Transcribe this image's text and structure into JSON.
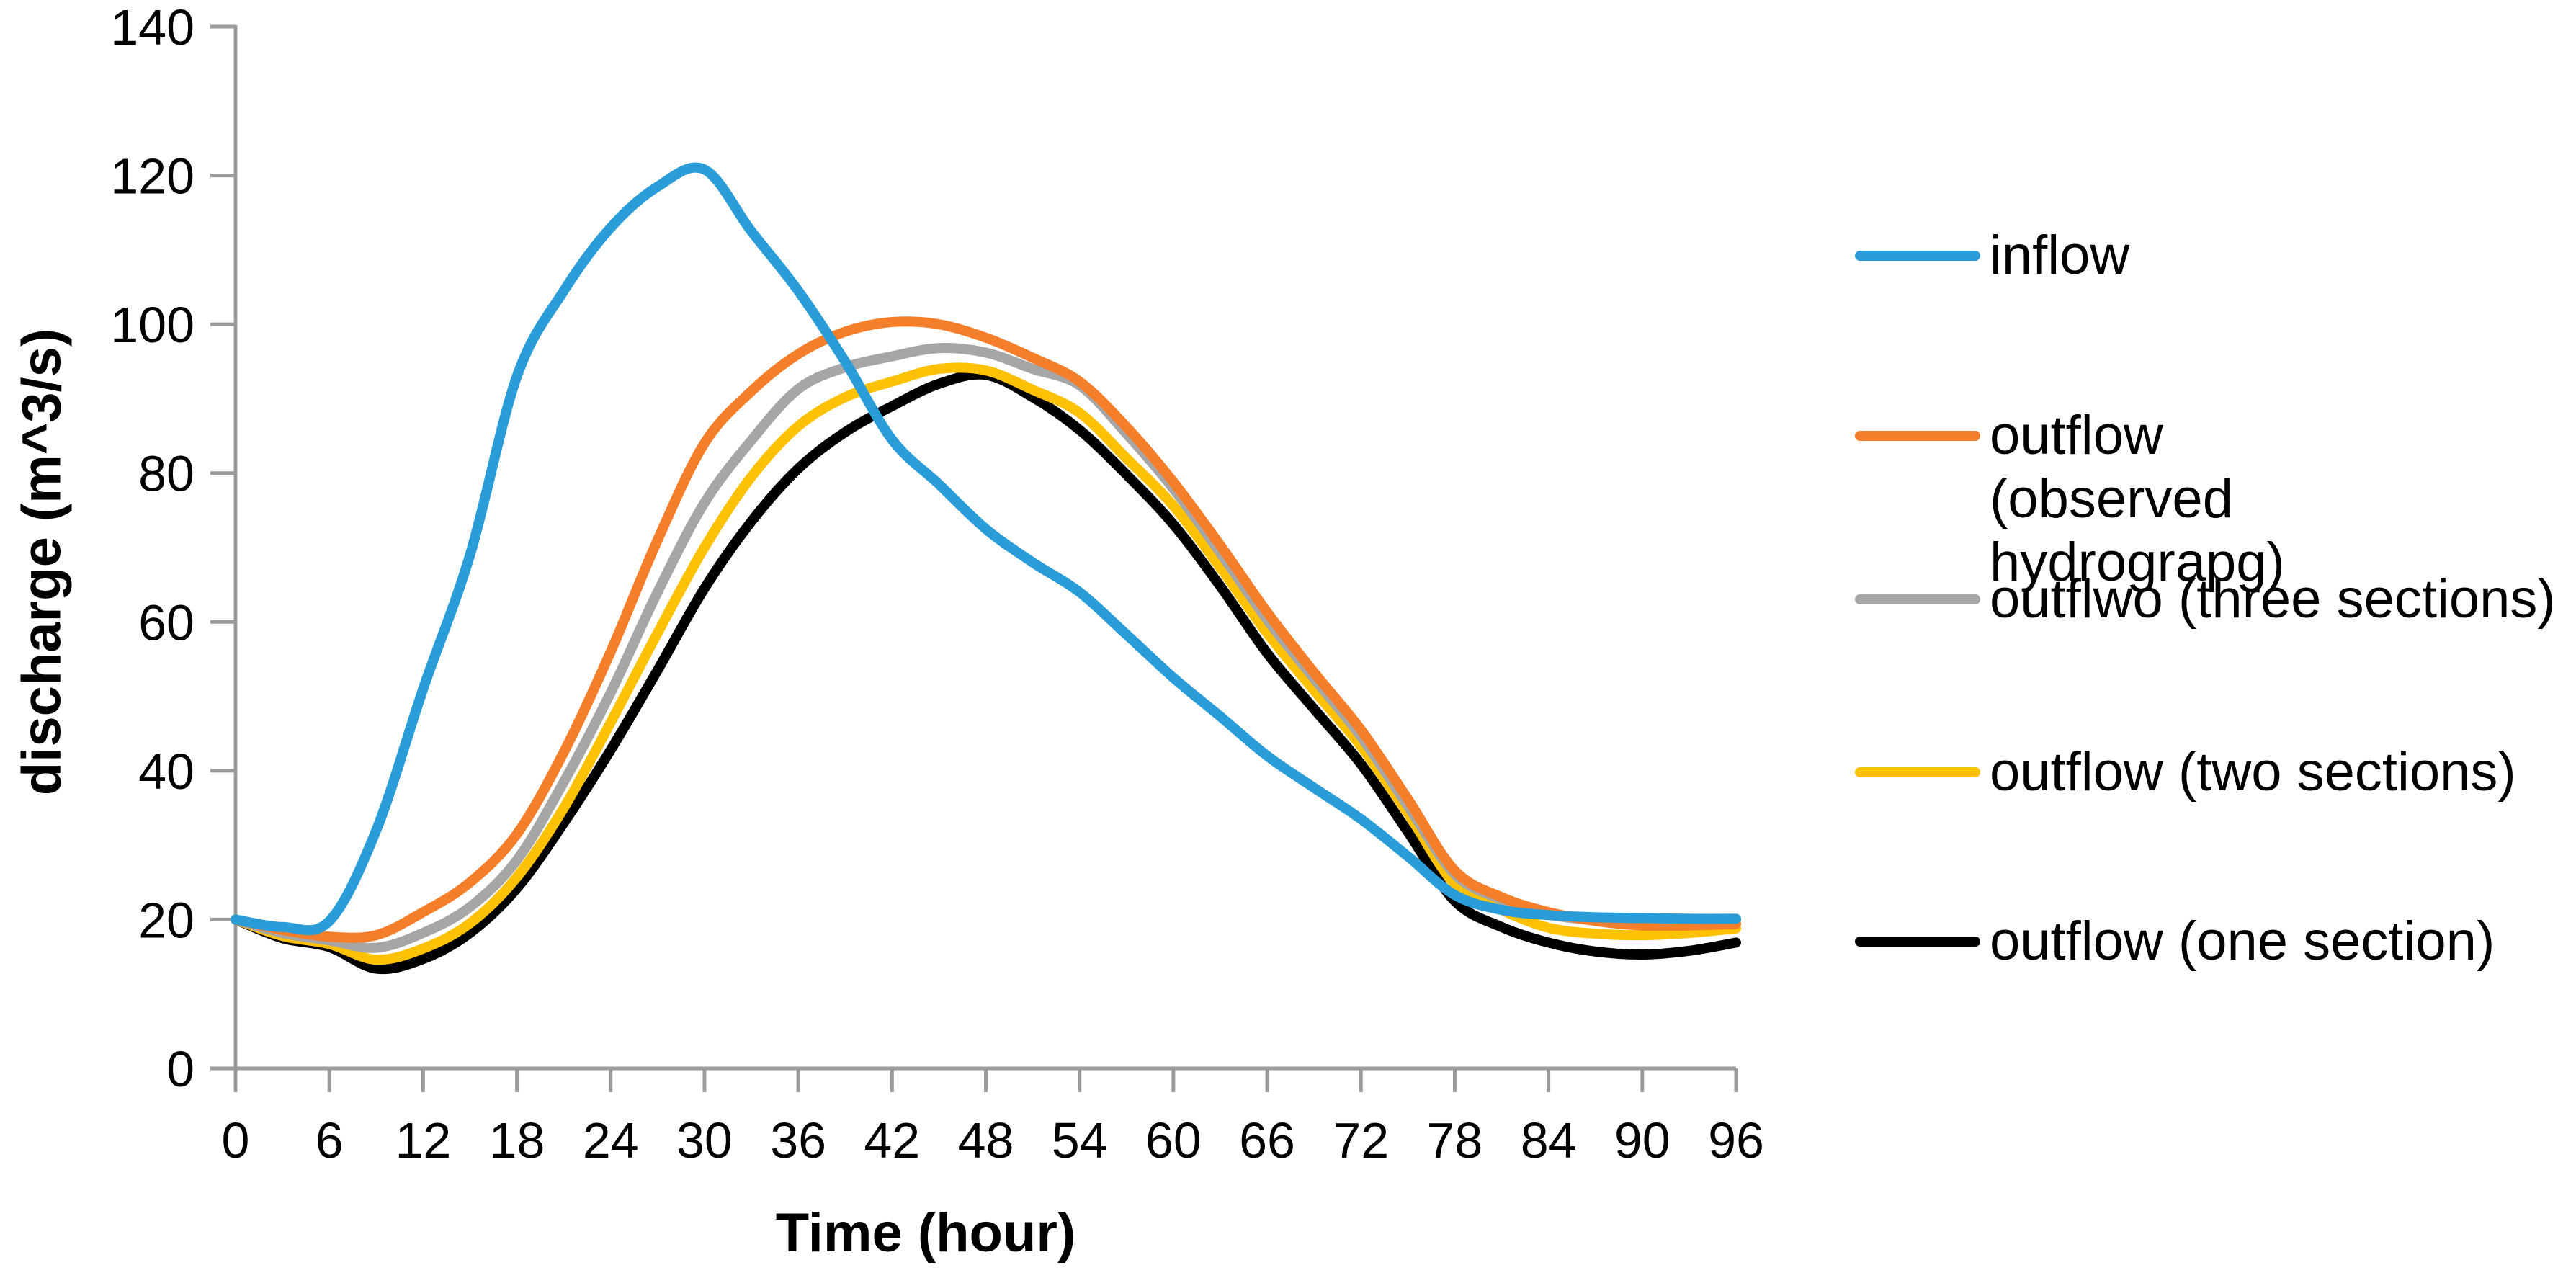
{
  "figure": {
    "background_color": "#FFFFFF",
    "axis_color": "#9B9B9B",
    "text_color": "#000000"
  },
  "chart_data": {
    "type": "line",
    "title": "",
    "xlabel": "Time (hour)",
    "ylabel": "discharge (m^3/s)",
    "xlim": [
      0,
      96
    ],
    "ylim": [
      0,
      140
    ],
    "xticks": [
      0,
      6,
      12,
      18,
      24,
      30,
      36,
      42,
      48,
      54,
      60,
      66,
      72,
      78,
      84,
      90,
      96
    ],
    "yticks": [
      0,
      20,
      40,
      60,
      80,
      100,
      120,
      140
    ],
    "grid": false,
    "legend_position": "right-outside",
    "axis_color": "#9B9B9B",
    "line_width": 14,
    "x": [
      0,
      3,
      6,
      9,
      12,
      15,
      18,
      21,
      24,
      27,
      30,
      33,
      36,
      39,
      42,
      45,
      48,
      51,
      54,
      57,
      60,
      63,
      66,
      69,
      72,
      75,
      78,
      81,
      84,
      87,
      90,
      93,
      96
    ],
    "series": [
      {
        "name": "inflow",
        "color": "#2A9CD7",
        "peak": {
          "x": 30,
          "y": 121
        },
        "values": [
          20,
          19,
          19.8,
          32,
          51,
          69,
          93,
          104.5,
          113,
          118.5,
          120.8,
          112.5,
          104.5,
          95,
          84.5,
          78.5,
          72.5,
          68,
          64,
          58.3,
          52.5,
          47.3,
          42,
          37.7,
          33.5,
          28.5,
          23.3,
          21.3,
          20.6,
          20.3,
          20.2,
          20.1,
          20.1
        ]
      },
      {
        "name": "outflow (observed hydrograpg)",
        "color": "#F57E2B",
        "peak": {
          "x": 43,
          "y": 100.3
        },
        "values": [
          20,
          18.6,
          17.7,
          17.9,
          21,
          25,
          31.5,
          42.5,
          56,
          71,
          84,
          91,
          96,
          99,
          100.3,
          100,
          98.2,
          95.5,
          92.3,
          86.2,
          78.8,
          70.3,
          61.3,
          53.2,
          45.5,
          36.2,
          26.6,
          23,
          21,
          19.8,
          19.2,
          19.2,
          19.4
        ]
      },
      {
        "name": "outflwo (three sections)",
        "color": "#A6A6A6",
        "peak": {
          "x": 45,
          "y": 96.8
        },
        "values": [
          20,
          18.2,
          17.2,
          16.2,
          18.2,
          21.7,
          28,
          38.5,
          50.5,
          64,
          76,
          84.4,
          91.3,
          94.2,
          95.7,
          96.8,
          96.2,
          94,
          91.8,
          85.3,
          77.9,
          69.3,
          60.3,
          52.4,
          44.6,
          35.3,
          26.1,
          22.7,
          20.7,
          19.9,
          19.5,
          19.5,
          19.8
        ]
      },
      {
        "name": "outflow (two sections)",
        "color": "#FFC104",
        "peak": {
          "x": 45,
          "y": 94
        },
        "values": [
          20,
          17.8,
          16.7,
          14.6,
          16.1,
          19.5,
          25.7,
          35,
          46.5,
          58.5,
          70,
          79.5,
          86.3,
          90.2,
          92.3,
          94,
          93.8,
          91.2,
          88.1,
          82,
          75.6,
          67.3,
          58.5,
          50.8,
          43.3,
          34.3,
          24.8,
          21.3,
          18.9,
          18.1,
          17.9,
          18.2,
          18.8
        ]
      },
      {
        "name": "outflow (one section)",
        "color": "#000000",
        "peak": {
          "x": 48,
          "y": 93.2
        },
        "values": [
          20,
          17.5,
          16.3,
          13.4,
          14.7,
          18.2,
          24.2,
          33,
          42.8,
          53.5,
          64.5,
          73.5,
          80.6,
          85.5,
          89,
          92,
          93.2,
          90.2,
          85.8,
          79.8,
          73.1,
          64.8,
          55.8,
          48.3,
          40.9,
          31.8,
          22.5,
          19,
          16.9,
          15.7,
          15.3,
          15.8,
          16.9
        ]
      }
    ]
  },
  "legend": {
    "items": [
      "inflow",
      "outflow (observed hydrograpg)",
      "outflwo (three sections)",
      "outflow (two sections)",
      "outflow (one section)"
    ]
  }
}
